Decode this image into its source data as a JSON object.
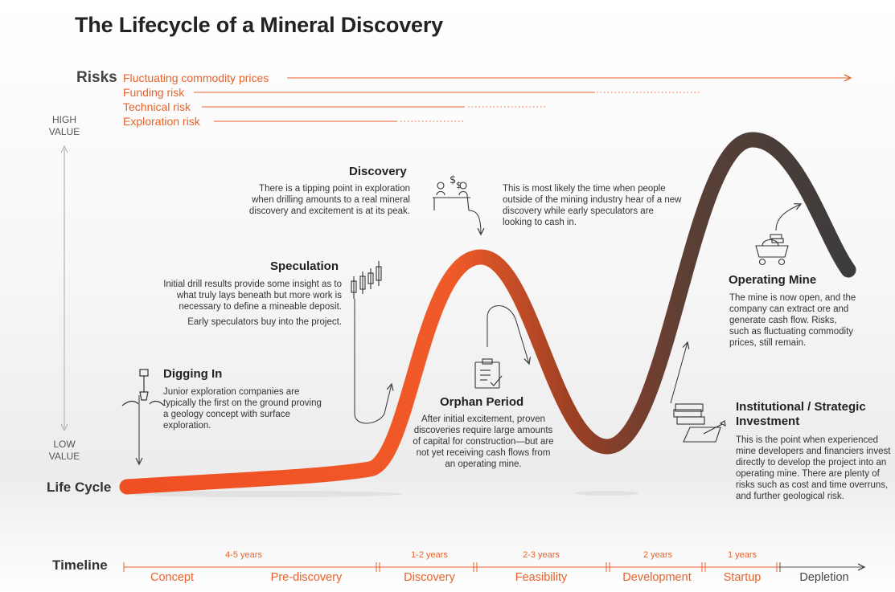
{
  "title": "The Lifecycle of a Mineral Discovery",
  "risks": {
    "label": "Risks",
    "items": [
      "Fluctuating commodity prices",
      "Funding risk",
      "Technical risk",
      "Exploration risk"
    ]
  },
  "value_axis": {
    "high": "HIGH VALUE",
    "low": "LOW VALUE"
  },
  "lifecycle_label": "Life Cycle",
  "phases": {
    "discovery": {
      "title": "Discovery",
      "text": "There is a tipping point in exploration when drilling amounts to a real mineral discovery and excitement is at its peak.",
      "outside": "This is most likely the time when people outside of the mining industry hear of a new discovery while early speculators are looking to cash in."
    },
    "speculation": {
      "title": "Speculation",
      "text": "Initial drill results provide some insight as to what truly lays beneath but more work is necessary to define a mineable deposit.",
      "text2": "Early speculators buy into the project."
    },
    "digging_in": {
      "title": "Digging In",
      "text": "Junior exploration companies are typically the first on the ground proving a geology concept with surface exploration."
    },
    "orphan": {
      "title": "Orphan Period",
      "text": "After initial excitement, proven discoveries require large amounts of capital for construction—but are not yet receiving cash flows from an operating mine."
    },
    "operating": {
      "title": "Operating Mine",
      "text": "The mine is now open, and the company can extract ore and generate cash flow. Risks, such as fluctuating commodity prices, still remain."
    },
    "institutional": {
      "title": "Institutional / Strategic Investment",
      "text": "This is the point when experienced mine developers and financiers invest directly to develop the project into an operating mine. There are plenty of risks such as cost and time overruns, and further geological risk."
    }
  },
  "timeline": {
    "label": "Timeline",
    "durations": [
      "4-5 years",
      "1-2 years",
      "2-3 years",
      "2 years",
      "1 years"
    ],
    "stages": [
      "Concept",
      "Pre-discovery",
      "Discovery",
      "Feasibility",
      "Development",
      "Startup",
      "Depletion"
    ]
  },
  "colors": {
    "accent": "#e8622a",
    "dark": "#3a3a3a",
    "text": "#333333"
  }
}
